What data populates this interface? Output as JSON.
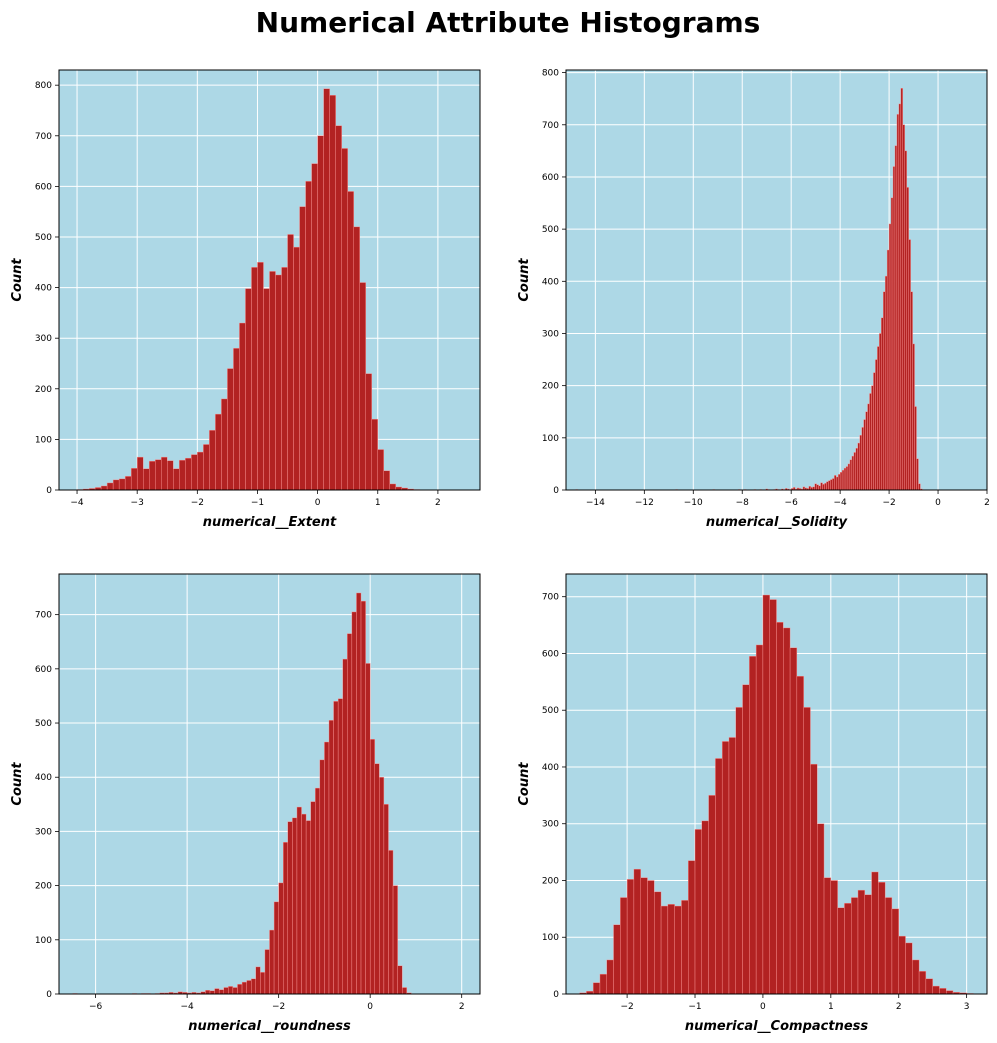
{
  "figure": {
    "title": "Numerical Attribute Histograms",
    "plot_background": "#add8e6",
    "bar_color": "#b22222",
    "bar_edge_color": "#ff9999",
    "grid_color": "#ffffff"
  },
  "chart_data": [
    {
      "type": "histogram",
      "xlabel": "numerical__Extent",
      "ylabel": "Count",
      "grid": true,
      "xlim": [
        -4.3,
        2.7
      ],
      "ylim": [
        0,
        830
      ],
      "xticks": [
        -4,
        -3,
        -2,
        -1,
        0,
        1,
        2
      ],
      "yticks": [
        0,
        100,
        200,
        300,
        400,
        500,
        600,
        700,
        800
      ],
      "bin_start": -4.0,
      "bin_width": 0.1,
      "counts": [
        1,
        2,
        3,
        5,
        8,
        14,
        20,
        22,
        27,
        43,
        65,
        42,
        57,
        60,
        65,
        58,
        42,
        59,
        63,
        70,
        75,
        90,
        118,
        150,
        180,
        240,
        280,
        330,
        398,
        440,
        450,
        398,
        432,
        425,
        440,
        505,
        480,
        560,
        610,
        645,
        700,
        793,
        780,
        720,
        675,
        590,
        520,
        410,
        230,
        140,
        80,
        38,
        12,
        6,
        4,
        2,
        1
      ]
    },
    {
      "type": "histogram",
      "xlabel": "numerical__Solidity",
      "ylabel": "Count",
      "grid": true,
      "xlim": [
        -15.2,
        2.0
      ],
      "ylim": [
        0,
        805
      ],
      "xticks": [
        -14,
        -12,
        -10,
        -8,
        -6,
        -4,
        -2,
        0,
        2
      ],
      "yticks": [
        0,
        100,
        200,
        300,
        400,
        500,
        600,
        700,
        800
      ],
      "bin_start": -14.8,
      "bin_width": 0.08,
      "counts": [
        1,
        0,
        0,
        0,
        0,
        0,
        0,
        0,
        0,
        0,
        0,
        0,
        0,
        0,
        0,
        0,
        0,
        0,
        0,
        0,
        0,
        0,
        0,
        0,
        0,
        0,
        0,
        0,
        0,
        0,
        0,
        0,
        0,
        0,
        0,
        0,
        0,
        0,
        0,
        0,
        0,
        0,
        0,
        0,
        0,
        0,
        0,
        0,
        0,
        0,
        0,
        1,
        0,
        0,
        0,
        0,
        0,
        0,
        0,
        0,
        0,
        0,
        0,
        0,
        0,
        0,
        0,
        0,
        0,
        0,
        1,
        0,
        0,
        0,
        0,
        0,
        0,
        0,
        0,
        0,
        0,
        0,
        0,
        1,
        0,
        0,
        1,
        0,
        0,
        0,
        0,
        1,
        0,
        0,
        1,
        0,
        0,
        2,
        1,
        0,
        0,
        1,
        2,
        1,
        0,
        2,
        1,
        3,
        2,
        1,
        3,
        5,
        2,
        4,
        3,
        2,
        6,
        4,
        3,
        7,
        5,
        6,
        12,
        10,
        8,
        14,
        11,
        13,
        16,
        18,
        20,
        22,
        28,
        25,
        30,
        34,
        38,
        42,
        45,
        50,
        58,
        65,
        72,
        80,
        90,
        105,
        120,
        135,
        150,
        165,
        185,
        200,
        225,
        250,
        275,
        300,
        330,
        380,
        410,
        460,
        510,
        560,
        620,
        660,
        720,
        740,
        770,
        700,
        650,
        580,
        480,
        380,
        280,
        160,
        60,
        12,
        2
      ]
    },
    {
      "type": "histogram",
      "xlabel": "numerical__roundness",
      "ylabel": "Count",
      "grid": true,
      "xlim": [
        -6.8,
        2.4
      ],
      "ylim": [
        0,
        775
      ],
      "xticks": [
        -6,
        -4,
        -2,
        0,
        2
      ],
      "yticks": [
        0,
        100,
        200,
        300,
        400,
        500,
        600,
        700
      ],
      "bin_start": -6.5,
      "bin_width": 0.1,
      "counts": [
        1,
        0,
        0,
        0,
        0,
        0,
        0,
        0,
        0,
        0,
        0,
        0,
        0,
        1,
        0,
        1,
        1,
        0,
        1,
        2,
        2,
        3,
        2,
        4,
        3,
        2,
        3,
        2,
        4,
        7,
        6,
        10,
        8,
        12,
        14,
        12,
        18,
        22,
        25,
        28,
        50,
        40,
        82,
        118,
        170,
        205,
        280,
        318,
        325,
        345,
        332,
        320,
        355,
        380,
        432,
        465,
        505,
        540,
        545,
        618,
        665,
        705,
        740,
        725,
        610,
        470,
        425,
        400,
        350,
        265,
        200,
        52,
        12,
        2
      ]
    },
    {
      "type": "histogram",
      "xlabel": "numerical__Compactness",
      "ylabel": "Count",
      "grid": true,
      "xlim": [
        -2.9,
        3.3
      ],
      "ylim": [
        0,
        740
      ],
      "xticks": [
        -2,
        -1,
        0,
        1,
        2,
        3
      ],
      "yticks": [
        0,
        100,
        200,
        300,
        400,
        500,
        600,
        700
      ],
      "bin_start": -2.7,
      "bin_width": 0.1,
      "counts": [
        2,
        5,
        20,
        35,
        60,
        122,
        170,
        202,
        220,
        205,
        200,
        180,
        155,
        158,
        155,
        165,
        235,
        290,
        305,
        350,
        415,
        445,
        452,
        505,
        545,
        595,
        615,
        703,
        695,
        655,
        645,
        610,
        560,
        505,
        405,
        300,
        205,
        200,
        152,
        160,
        170,
        183,
        175,
        215,
        197,
        170,
        150,
        102,
        90,
        60,
        40,
        27,
        14,
        10,
        6,
        3,
        2,
        1
      ]
    }
  ]
}
